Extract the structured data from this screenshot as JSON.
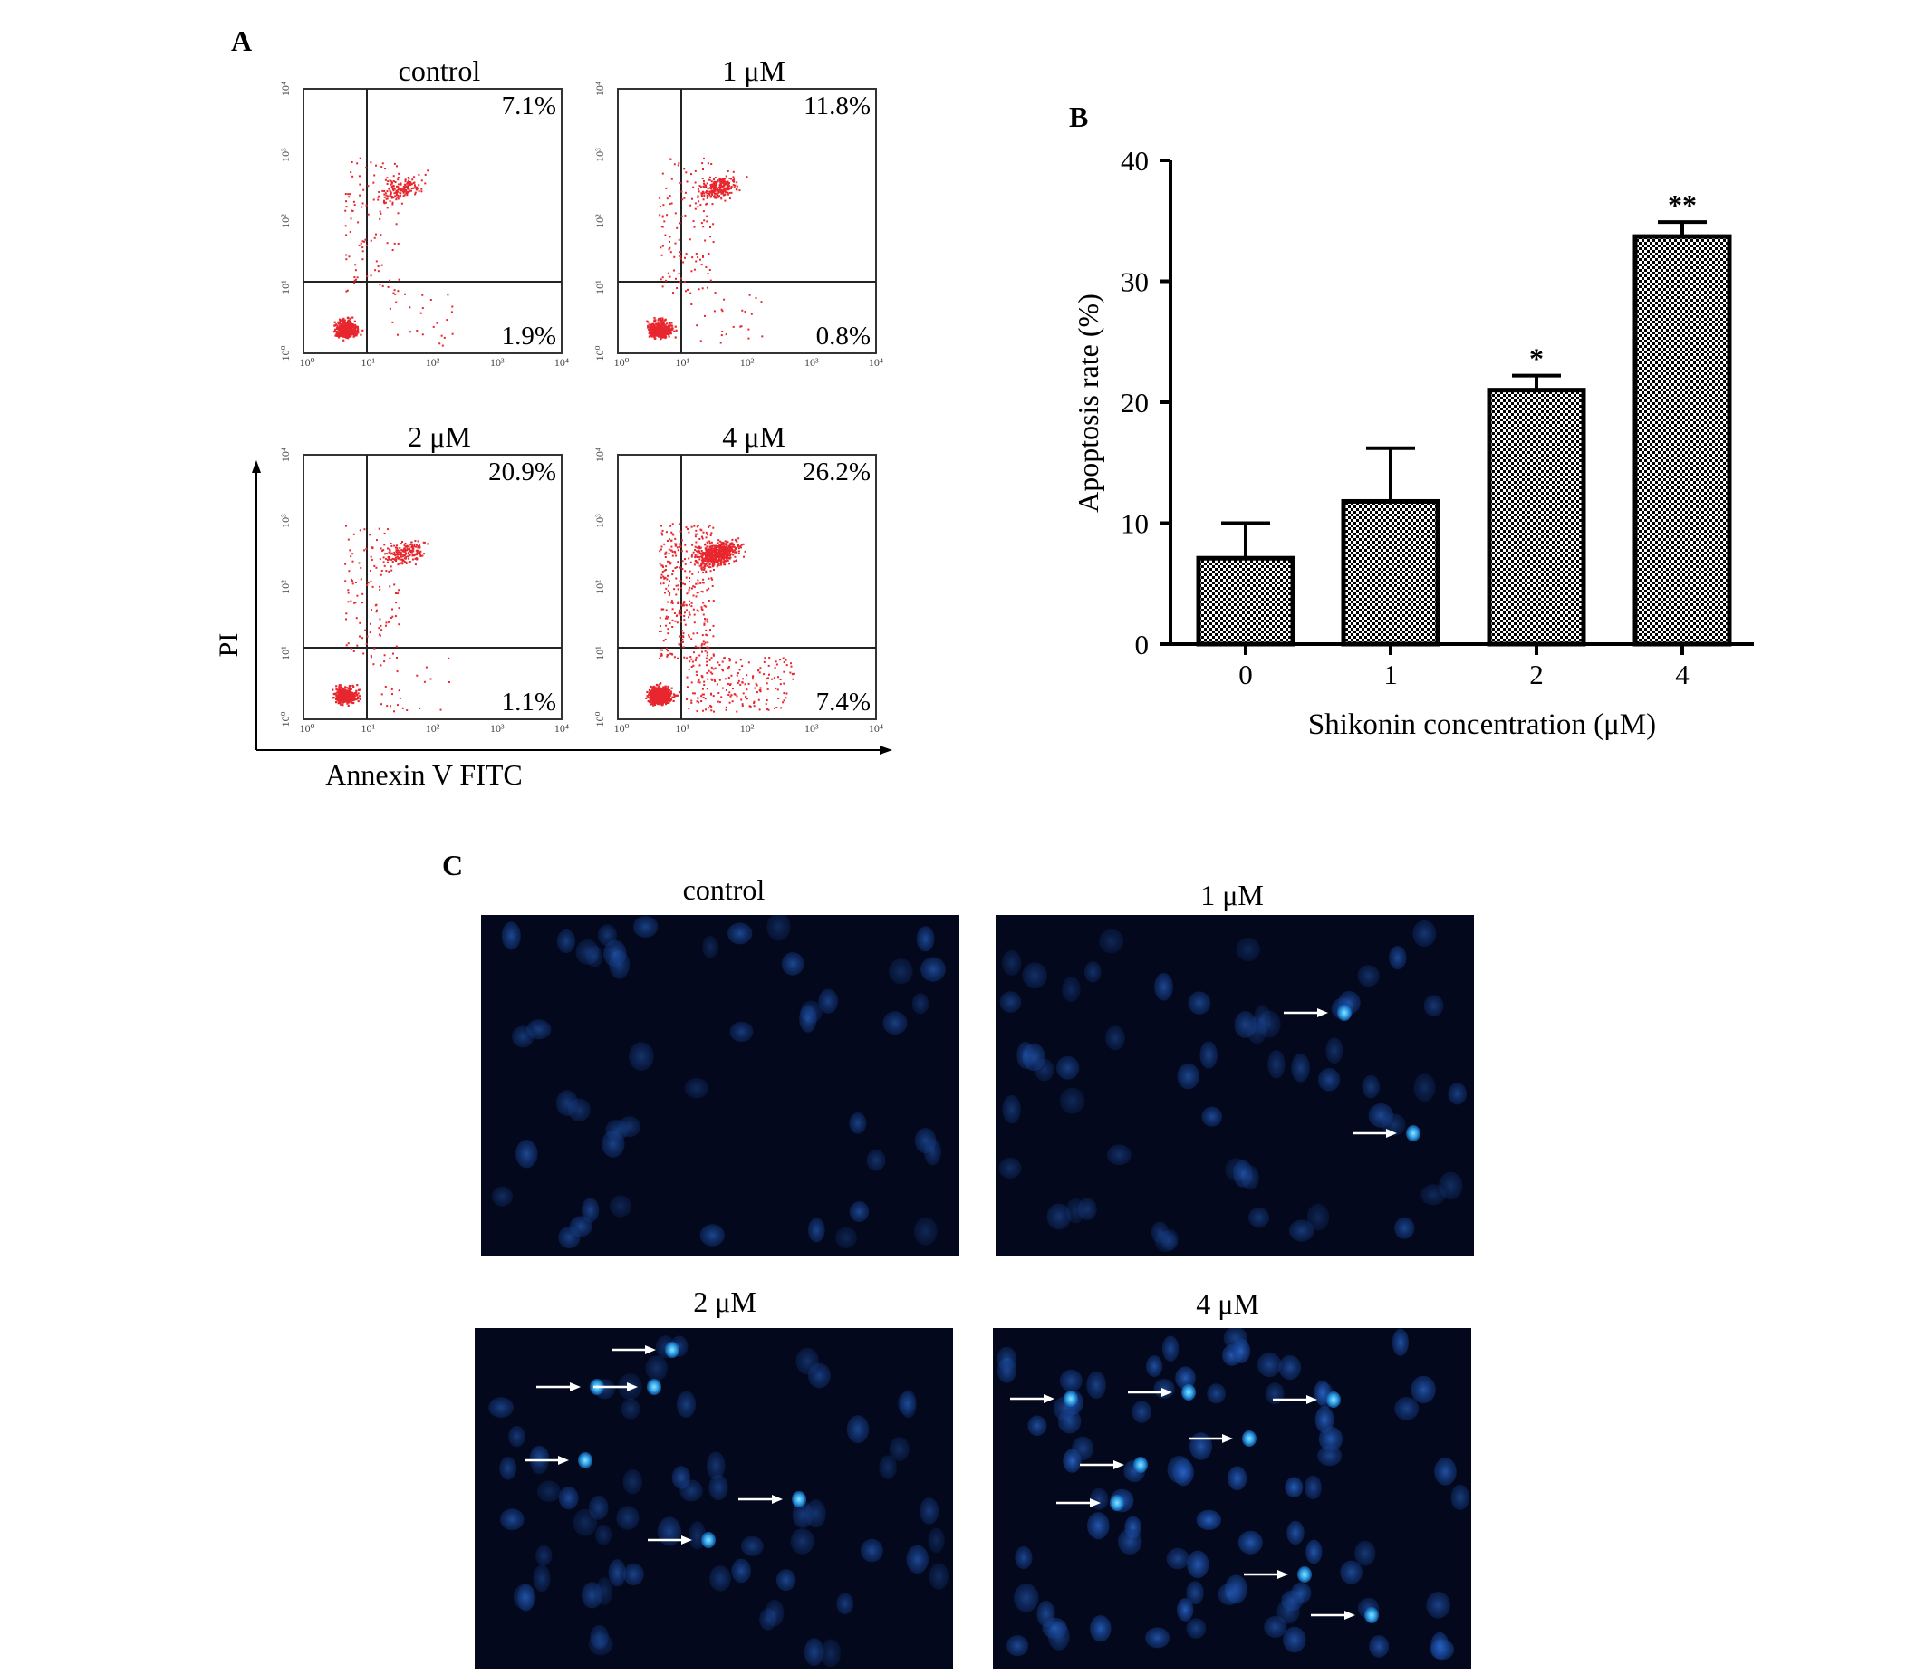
{
  "panel_labels": {
    "a": "A",
    "b": "B",
    "c": "C"
  },
  "colors": {
    "dot": "#e8262e",
    "fluor_bg": "#03081c",
    "nucleus": "#1e5bb8",
    "nucleus_bright": "#4ab2ee",
    "arrow": "#ffffff"
  },
  "flow": {
    "y_axis_label": "PI",
    "x_axis_label": "Annexin V  FITC",
    "tick_labels": [
      "10⁰",
      "10¹",
      "10²",
      "10³",
      "10⁴"
    ],
    "plots": [
      {
        "title": "control",
        "upper_right": "7.1%",
        "lower_right": "1.9%"
      },
      {
        "title": "1 μM",
        "upper_right": "11.8%",
        "lower_right": "0.8%"
      },
      {
        "title": "2 μM",
        "upper_right": "20.9%",
        "lower_right": "1.1%"
      },
      {
        "title": "4 μM",
        "upper_right": "26.2%",
        "lower_right": "7.4%"
      }
    ]
  },
  "chart_data": {
    "type": "bar",
    "categories": [
      "0",
      "1",
      "2",
      "4"
    ],
    "values": [
      7.1,
      11.8,
      21.0,
      33.7
    ],
    "error_plus": [
      2.9,
      4.4,
      1.2,
      1.2
    ],
    "significance": [
      "",
      "",
      "*",
      "**"
    ],
    "xlabel": "Shikonin concentration (μM)",
    "ylabel": "Apoptosis rate (%)",
    "ylim": [
      0,
      40
    ],
    "yticks": [
      0,
      10,
      20,
      30,
      40
    ],
    "bar_pattern": "checkered black and white",
    "grid": false
  },
  "micrographs": [
    {
      "title": "control",
      "arrows": 0,
      "density": "dim"
    },
    {
      "title": "1 μM",
      "arrows": 2,
      "density": "dim"
    },
    {
      "title": "2 μM",
      "arrows": 6,
      "density": "medium"
    },
    {
      "title": "4 μM",
      "arrows": 8,
      "density": "bright"
    }
  ]
}
